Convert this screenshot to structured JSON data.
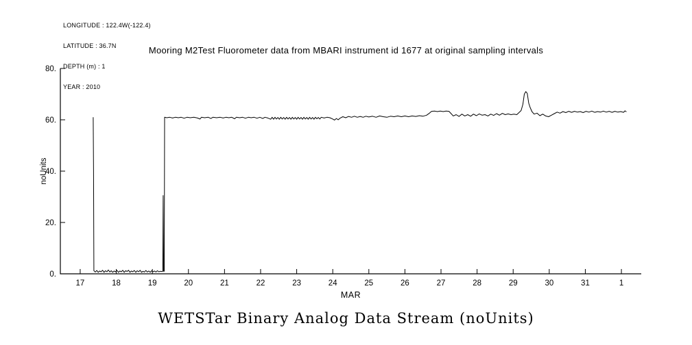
{
  "meta": {
    "longitude": "LONGITUDE : 122.4W(-122.4)",
    "latitude": "LATITUDE : 36.7N",
    "depth": "DEPTH (m) : 1",
    "year": "YEAR : 2010"
  },
  "caption": "WETSTar Binary Analog Data Stream (noUnits)",
  "chart_data": {
    "type": "line",
    "title": "Mooring M2Test Fluorometer data from MBARI instrument id 1677 at original sampling intervals",
    "xlabel": "MAR",
    "ylabel": "noUnits",
    "xlim": [
      16.45,
      32.55
    ],
    "ylim": [
      0,
      80
    ],
    "grid": false,
    "legend": "none",
    "line_color": "#000000",
    "x_ticks": [
      {
        "v": 17,
        "label": "17"
      },
      {
        "v": 18,
        "label": "18"
      },
      {
        "v": 19,
        "label": "19"
      },
      {
        "v": 20,
        "label": "20"
      },
      {
        "v": 21,
        "label": "21"
      },
      {
        "v": 22,
        "label": "22"
      },
      {
        "v": 23,
        "label": "23"
      },
      {
        "v": 24,
        "label": "24"
      },
      {
        "v": 25,
        "label": "25"
      },
      {
        "v": 26,
        "label": "26"
      },
      {
        "v": 27,
        "label": "27"
      },
      {
        "v": 28,
        "label": "28"
      },
      {
        "v": 29,
        "label": "29"
      },
      {
        "v": 30,
        "label": "30"
      },
      {
        "v": 31,
        "label": "31"
      },
      {
        "v": 32,
        "label": "1"
      }
    ],
    "y_ticks": [
      {
        "v": 0,
        "label": "0."
      },
      {
        "v": 20,
        "label": "20."
      },
      {
        "v": 40,
        "label": "40."
      },
      {
        "v": 60,
        "label": "60."
      },
      {
        "v": 80,
        "label": "80."
      }
    ],
    "series": [
      [
        17.36,
        61.0
      ],
      [
        17.37,
        40.0
      ],
      [
        17.38,
        1.2
      ],
      [
        17.42,
        0.7
      ],
      [
        17.46,
        1.3
      ],
      [
        17.5,
        0.6
      ],
      [
        17.54,
        1.1
      ],
      [
        17.58,
        0.8
      ],
      [
        17.62,
        1.4
      ],
      [
        17.66,
        0.6
      ],
      [
        17.7,
        1.2
      ],
      [
        17.74,
        0.8
      ],
      [
        17.78,
        1.5
      ],
      [
        17.82,
        0.7
      ],
      [
        17.86,
        1.2
      ],
      [
        17.9,
        0.6
      ],
      [
        17.94,
        1.1
      ],
      [
        17.98,
        0.8
      ],
      [
        18.02,
        1.3
      ],
      [
        18.06,
        0.6
      ],
      [
        18.1,
        1.1
      ],
      [
        18.14,
        0.8
      ],
      [
        18.18,
        1.4
      ],
      [
        18.22,
        0.6
      ],
      [
        18.26,
        1.2
      ],
      [
        18.3,
        0.9
      ],
      [
        18.34,
        1.4
      ],
      [
        18.38,
        0.6
      ],
      [
        18.42,
        1.1
      ],
      [
        18.46,
        0.8
      ],
      [
        18.5,
        1.3
      ],
      [
        18.54,
        0.6
      ],
      [
        18.58,
        1.2
      ],
      [
        18.62,
        0.8
      ],
      [
        18.66,
        1.4
      ],
      [
        18.7,
        0.6
      ],
      [
        18.74,
        1.0
      ],
      [
        18.78,
        0.7
      ],
      [
        18.82,
        1.3
      ],
      [
        18.86,
        0.7
      ],
      [
        18.9,
        1.1
      ],
      [
        18.94,
        0.6
      ],
      [
        18.98,
        1.2
      ],
      [
        19.02,
        0.8
      ],
      [
        19.06,
        1.1
      ],
      [
        19.1,
        0.7
      ],
      [
        19.14,
        1.2
      ],
      [
        19.18,
        0.8
      ],
      [
        19.22,
        1.0
      ],
      [
        19.26,
        0.9
      ],
      [
        19.29,
        1.0
      ],
      [
        19.3,
        30.5
      ],
      [
        19.31,
        1.0
      ],
      [
        19.33,
        1.0
      ],
      [
        19.34,
        61.0
      ],
      [
        19.4,
        60.8
      ],
      [
        19.48,
        61.0
      ],
      [
        19.56,
        60.7
      ],
      [
        19.64,
        61.0
      ],
      [
        19.72,
        60.8
      ],
      [
        19.8,
        61.0
      ],
      [
        19.88,
        60.6
      ],
      [
        19.96,
        61.0
      ],
      [
        20.05,
        60.8
      ],
      [
        20.15,
        61.0
      ],
      [
        20.25,
        60.7
      ],
      [
        20.32,
        60.3
      ],
      [
        20.36,
        61.0
      ],
      [
        20.45,
        60.8
      ],
      [
        20.55,
        61.0
      ],
      [
        20.62,
        60.5
      ],
      [
        20.68,
        61.0
      ],
      [
        20.78,
        60.8
      ],
      [
        20.88,
        61.0
      ],
      [
        20.96,
        60.7
      ],
      [
        21.04,
        61.0
      ],
      [
        21.12,
        60.8
      ],
      [
        21.2,
        61.0
      ],
      [
        21.28,
        60.4
      ],
      [
        21.33,
        61.0
      ],
      [
        21.42,
        60.8
      ],
      [
        21.5,
        61.0
      ],
      [
        21.58,
        60.6
      ],
      [
        21.66,
        61.0
      ],
      [
        21.74,
        60.8
      ],
      [
        21.82,
        61.0
      ],
      [
        21.9,
        60.6
      ],
      [
        21.98,
        61.0
      ],
      [
        22.06,
        60.5
      ],
      [
        22.12,
        61.0
      ],
      [
        22.2,
        60.7
      ],
      [
        22.28,
        60.2
      ],
      [
        22.32,
        61.0
      ],
      [
        22.36,
        60.2
      ],
      [
        22.4,
        61.0
      ],
      [
        22.44,
        60.3
      ],
      [
        22.48,
        60.9
      ],
      [
        22.52,
        60.2
      ],
      [
        22.56,
        61.0
      ],
      [
        22.6,
        60.3
      ],
      [
        22.64,
        60.9
      ],
      [
        22.68,
        60.2
      ],
      [
        22.72,
        61.0
      ],
      [
        22.76,
        60.3
      ],
      [
        22.8,
        60.9
      ],
      [
        22.84,
        60.2
      ],
      [
        22.88,
        61.0
      ],
      [
        22.92,
        60.3
      ],
      [
        22.96,
        60.9
      ],
      [
        23.0,
        60.2
      ],
      [
        23.04,
        61.0
      ],
      [
        23.08,
        60.3
      ],
      [
        23.12,
        60.9
      ],
      [
        23.16,
        60.2
      ],
      [
        23.2,
        61.0
      ],
      [
        23.24,
        60.3
      ],
      [
        23.28,
        60.9
      ],
      [
        23.32,
        60.2
      ],
      [
        23.36,
        61.0
      ],
      [
        23.4,
        60.3
      ],
      [
        23.44,
        60.9
      ],
      [
        23.48,
        60.2
      ],
      [
        23.52,
        61.0
      ],
      [
        23.56,
        60.4
      ],
      [
        23.6,
        60.9
      ],
      [
        23.64,
        60.3
      ],
      [
        23.68,
        61.0
      ],
      [
        23.76,
        60.7
      ],
      [
        23.84,
        61.0
      ],
      [
        23.92,
        60.8
      ],
      [
        24.0,
        60.3
      ],
      [
        24.05,
        59.9
      ],
      [
        24.1,
        60.5
      ],
      [
        24.15,
        60.0
      ],
      [
        24.2,
        60.6
      ],
      [
        24.28,
        61.2
      ],
      [
        24.36,
        60.8
      ],
      [
        24.44,
        61.3
      ],
      [
        24.52,
        61.0
      ],
      [
        24.6,
        61.4
      ],
      [
        24.68,
        61.0
      ],
      [
        24.76,
        61.3
      ],
      [
        24.84,
        61.0
      ],
      [
        24.92,
        61.4
      ],
      [
        25.0,
        61.1
      ],
      [
        25.1,
        61.4
      ],
      [
        25.2,
        61.0
      ],
      [
        25.3,
        61.5
      ],
      [
        25.4,
        61.2
      ],
      [
        25.5,
        61.0
      ],
      [
        25.6,
        61.4
      ],
      [
        25.7,
        61.2
      ],
      [
        25.8,
        61.5
      ],
      [
        25.9,
        61.2
      ],
      [
        26.0,
        61.5
      ],
      [
        26.1,
        61.2
      ],
      [
        26.2,
        61.5
      ],
      [
        26.3,
        61.3
      ],
      [
        26.4,
        61.6
      ],
      [
        26.5,
        61.4
      ],
      [
        26.6,
        61.8
      ],
      [
        26.68,
        62.6
      ],
      [
        26.74,
        63.3
      ],
      [
        26.82,
        63.4
      ],
      [
        26.9,
        63.2
      ],
      [
        26.98,
        63.4
      ],
      [
        27.06,
        63.2
      ],
      [
        27.14,
        63.4
      ],
      [
        27.22,
        63.3
      ],
      [
        27.28,
        62.4
      ],
      [
        27.34,
        61.5
      ],
      [
        27.42,
        62.0
      ],
      [
        27.5,
        61.3
      ],
      [
        27.58,
        62.2
      ],
      [
        27.66,
        61.5
      ],
      [
        27.74,
        62.0
      ],
      [
        27.82,
        61.4
      ],
      [
        27.9,
        62.2
      ],
      [
        27.98,
        61.6
      ],
      [
        28.06,
        62.3
      ],
      [
        28.14,
        61.8
      ],
      [
        28.22,
        62.0
      ],
      [
        28.3,
        61.5
      ],
      [
        28.38,
        62.2
      ],
      [
        28.46,
        61.7
      ],
      [
        28.54,
        62.4
      ],
      [
        28.62,
        61.8
      ],
      [
        28.7,
        62.5
      ],
      [
        28.78,
        62.0
      ],
      [
        28.86,
        62.3
      ],
      [
        28.94,
        62.0
      ],
      [
        29.02,
        62.2
      ],
      [
        29.1,
        62.0
      ],
      [
        29.16,
        62.8
      ],
      [
        29.22,
        63.6
      ],
      [
        29.27,
        66.0
      ],
      [
        29.31,
        70.0
      ],
      [
        29.35,
        71.0
      ],
      [
        29.39,
        70.3
      ],
      [
        29.43,
        66.5
      ],
      [
        29.47,
        64.8
      ],
      [
        29.52,
        63.2
      ],
      [
        29.58,
        62.2
      ],
      [
        29.66,
        62.6
      ],
      [
        29.74,
        61.6
      ],
      [
        29.82,
        62.2
      ],
      [
        29.9,
        61.5
      ],
      [
        29.98,
        61.2
      ],
      [
        30.06,
        61.8
      ],
      [
        30.14,
        62.4
      ],
      [
        30.22,
        63.0
      ],
      [
        30.3,
        62.6
      ],
      [
        30.38,
        63.2
      ],
      [
        30.46,
        62.8
      ],
      [
        30.54,
        63.3
      ],
      [
        30.62,
        62.9
      ],
      [
        30.7,
        63.3
      ],
      [
        30.78,
        63.0
      ],
      [
        30.86,
        63.2
      ],
      [
        30.94,
        62.8
      ],
      [
        31.02,
        63.3
      ],
      [
        31.1,
        63.0
      ],
      [
        31.18,
        63.4
      ],
      [
        31.26,
        62.9
      ],
      [
        31.34,
        63.2
      ],
      [
        31.42,
        63.0
      ],
      [
        31.5,
        63.4
      ],
      [
        31.58,
        63.0
      ],
      [
        31.66,
        63.3
      ],
      [
        31.74,
        62.9
      ],
      [
        31.82,
        63.3
      ],
      [
        31.9,
        63.0
      ],
      [
        31.98,
        63.2
      ],
      [
        32.06,
        62.9
      ],
      [
        32.1,
        63.5
      ],
      [
        32.14,
        63.1
      ]
    ]
  }
}
